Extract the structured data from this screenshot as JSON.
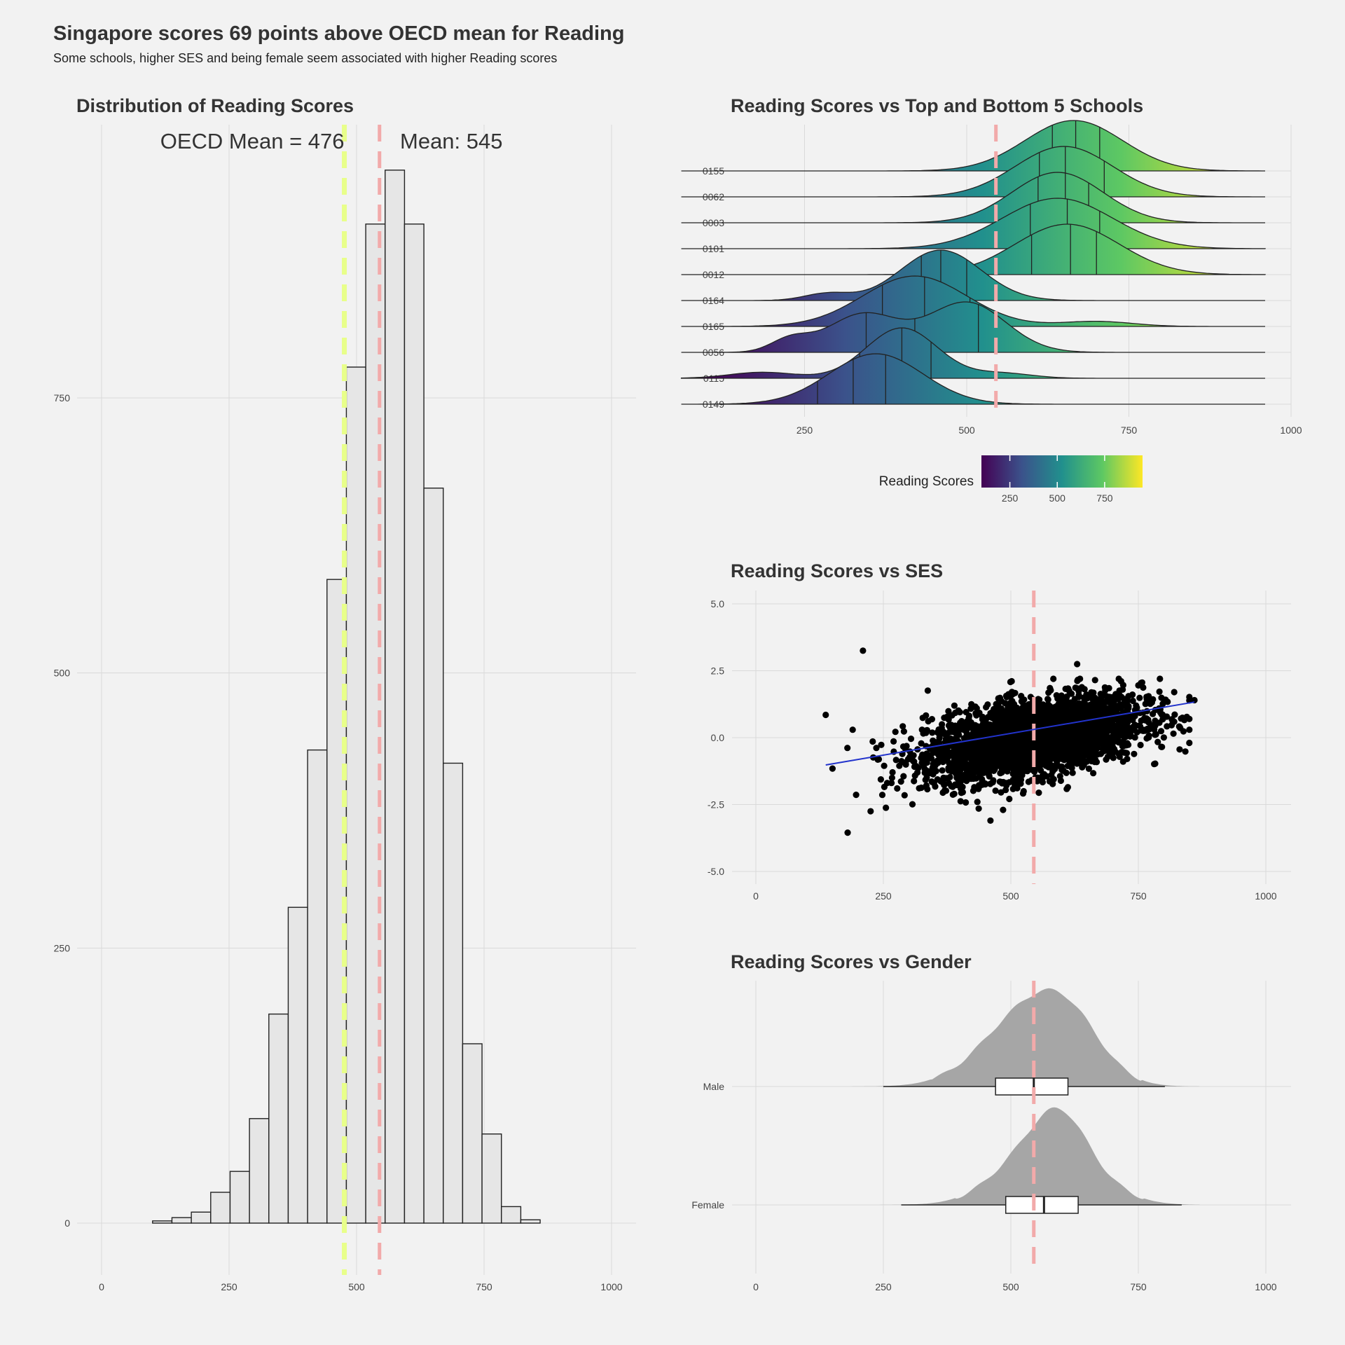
{
  "page": {
    "title": "Singapore scores 69 points above OECD mean for Reading",
    "subtitle": "Some schools, higher SES and being female seem associated with higher Reading scores"
  },
  "colors": {
    "oecd_line": "#e8ff8a",
    "mean_line": "#f2aaaa",
    "histogram_fill": "#e6e6e6",
    "outline": "#222222",
    "density_fill": "#a6a6a6",
    "regression_line": "#2233cc",
    "viridis": [
      "#440154",
      "#3b528b",
      "#21908d",
      "#5dc863",
      "#fde725"
    ]
  },
  "chart_data": [
    {
      "id": "histogram",
      "type": "bar",
      "title": "Distribution of Reading Scores",
      "xlim": [
        0,
        1000
      ],
      "ylim": [
        -50,
        1000
      ],
      "x_ticks": [
        0,
        250,
        500,
        750,
        1000
      ],
      "y_ticks": [
        0,
        250,
        500,
        750
      ],
      "bin_width": 38,
      "bin_centers": [
        119,
        157,
        195,
        233,
        271,
        309,
        347,
        385,
        423,
        461,
        499,
        537,
        575,
        613,
        651,
        689,
        727,
        765,
        803,
        841
      ],
      "values": [
        2,
        5,
        10,
        28,
        47,
        95,
        190,
        287,
        430,
        585,
        778,
        908,
        957,
        908,
        668,
        418,
        163,
        81,
        15,
        3
      ],
      "reference_lines": [
        {
          "label": "OECD Mean = 476",
          "x": 476,
          "color": "oecd"
        },
        {
          "label": "Mean:  545",
          "x": 545,
          "color": "mean"
        }
      ],
      "annotations": [
        "OECD Mean = 476",
        "Mean:  545"
      ]
    },
    {
      "id": "ridgeline",
      "type": "area",
      "title": "Reading Scores vs Top and Bottom 5 Schools",
      "xlim": [
        0,
        1000
      ],
      "x_ticks": [
        250,
        500,
        750,
        1000
      ],
      "categories": [
        "0155",
        "0062",
        "0003",
        "0101",
        "0012",
        "0164",
        "0165",
        "0056",
        "0115",
        "0149"
      ],
      "reference_line_x": 545,
      "schools": [
        {
          "school": "0155",
          "peaks": [
            {
              "mu": 665,
              "sd": 75,
              "w": 1.0
            }
          ],
          "quartiles": [
            632,
            668,
            705
          ]
        },
        {
          "school": "0062",
          "peaks": [
            {
              "mu": 650,
              "sd": 75,
              "w": 1.0
            }
          ],
          "quartiles": [
            612,
            652,
            712
          ]
        },
        {
          "school": "0003",
          "peaks": [
            {
              "mu": 640,
              "sd": 70,
              "w": 1.0
            }
          ],
          "quartiles": [
            610,
            652,
            688
          ]
        },
        {
          "school": "0101",
          "peaks": [
            {
              "mu": 640,
              "sd": 85,
              "w": 1.0
            }
          ],
          "quartiles": [
            598,
            655,
            705
          ]
        },
        {
          "school": "0012",
          "peaks": [
            {
              "mu": 655,
              "sd": 80,
              "w": 1.0
            }
          ],
          "quartiles": [
            600,
            660,
            700
          ]
        },
        {
          "school": "0164",
          "peaks": [
            {
              "mu": 460,
              "sd": 62,
              "w": 1.0
            },
            {
              "mu": 285,
              "sd": 35,
              "w": 0.14
            }
          ],
          "quartiles": [
            430,
            460,
            500
          ]
        },
        {
          "school": "0165",
          "peaks": [
            {
              "mu": 420,
              "sd": 80,
              "w": 1.0
            },
            {
              "mu": 700,
              "sd": 55,
              "w": 0.1
            }
          ],
          "quartiles": [
            370,
            435,
            505
          ]
        },
        {
          "school": "0056",
          "peaks": [
            {
              "mu": 340,
              "sd": 55,
              "w": 0.55
            },
            {
              "mu": 500,
              "sd": 60,
              "w": 0.72
            },
            {
              "mu": 228,
              "sd": 30,
              "w": 0.18
            }
          ],
          "quartiles": [
            345,
            420,
            518
          ]
        },
        {
          "school": "0115",
          "peaks": [
            {
              "mu": 400,
              "sd": 55,
              "w": 1.0
            },
            {
              "mu": 185,
              "sd": 50,
              "w": 0.12
            },
            {
              "mu": 555,
              "sd": 45,
              "w": 0.1
            }
          ],
          "quartiles": [
            335,
            400,
            445
          ]
        },
        {
          "school": "0149",
          "peaks": [
            {
              "mu": 360,
              "sd": 72,
              "w": 1.0
            }
          ],
          "quartiles": [
            270,
            325,
            375
          ]
        }
      ],
      "legend": {
        "title": "Reading Scores",
        "range": [
          100,
          950
        ],
        "ticks": [
          250,
          500,
          750
        ]
      }
    },
    {
      "id": "scatter",
      "type": "scatter",
      "title": "Reading Scores vs SES",
      "xlim": [
        0,
        1000
      ],
      "ylim": [
        -5.5,
        5.5
      ],
      "x_ticks": [
        0,
        250,
        500,
        750,
        1000
      ],
      "y_ticks": [
        5.0,
        2.5,
        0.0,
        -2.5,
        -5.0
      ],
      "y_tick_labels": [
        "5.0",
        "2.5",
        "0.0",
        "-2.5",
        "-5.0"
      ],
      "reference_line_x": 545,
      "regression": {
        "x": [
          137,
          860
        ],
        "y": [
          -1.02,
          1.33
        ]
      },
      "outliers": [
        [
          210,
          3.25
        ],
        [
          180,
          -3.55
        ],
        [
          137,
          0.85
        ],
        [
          225,
          -2.75
        ],
        [
          255,
          -2.62
        ],
        [
          460,
          -3.1
        ],
        [
          630,
          2.75
        ],
        [
          770,
          1.55
        ],
        [
          860,
          1.4
        ]
      ]
    },
    {
      "id": "violin",
      "type": "area",
      "title": "Reading Scores vs Gender",
      "xlim": [
        0,
        1000
      ],
      "x_ticks": [
        0,
        250,
        500,
        750,
        1000
      ],
      "categories": [
        "Male",
        "Female"
      ],
      "reference_line_x": 545,
      "groups": [
        {
          "name": "Male",
          "peaks": [
            {
              "mu": 540,
              "sd": 90,
              "w": 0.85
            },
            {
              "mu": 620,
              "sd": 60,
              "w": 0.35
            }
          ],
          "box": {
            "q1": 470,
            "median": 545,
            "q3": 612
          },
          "whiskers": [
            250,
            802
          ]
        },
        {
          "name": "Female",
          "peaks": [
            {
              "mu": 575,
              "sd": 85,
              "w": 0.8
            },
            {
              "mu": 600,
              "sd": 45,
              "w": 0.3
            }
          ],
          "box": {
            "q1": 490,
            "median": 565,
            "q3": 632
          },
          "whiskers": [
            285,
            835
          ]
        }
      ]
    }
  ]
}
